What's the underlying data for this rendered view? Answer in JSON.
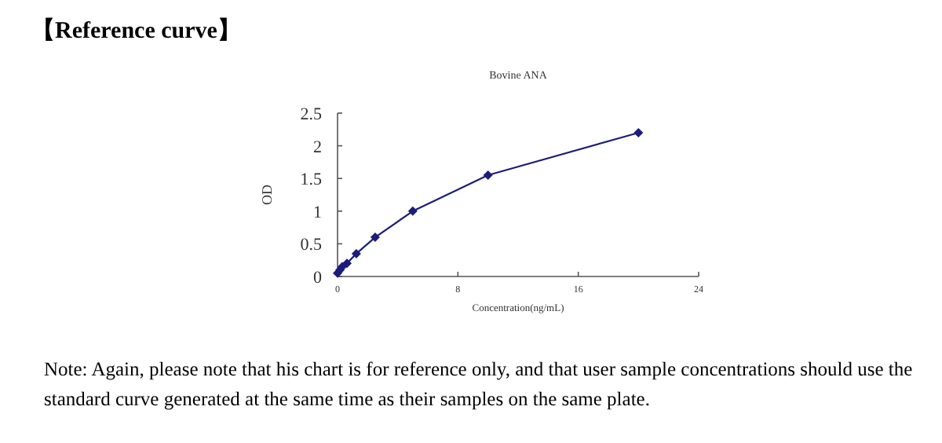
{
  "chart_data": {
    "type": "line",
    "title": "Bovine ANA",
    "xlabel": "Concentration(ng/mL)",
    "ylabel": "OD",
    "x": [
      0,
      0.156,
      0.312,
      0.625,
      1.25,
      2.5,
      5,
      10,
      20
    ],
    "series": [
      {
        "color": "#1c1c7a",
        "values": [
          0.05,
          0.1,
          0.15,
          0.2,
          0.35,
          0.6,
          1.0,
          1.55,
          2.2
        ]
      }
    ],
    "marker": "diamond",
    "line_style": "solid",
    "xlim": [
      0,
      24
    ],
    "xticks": [
      0,
      8,
      16,
      24
    ],
    "ylim": [
      0,
      2.5
    ],
    "yticks": [
      0,
      0.5,
      1,
      1.5,
      2,
      2.5
    ],
    "annotations": [
      "【Reference curve】",
      "Note: Again, please note that his chart is for reference only, and that user sample concentrations should use the standard curve generated at the same time as their samples on the same plate."
    ]
  }
}
